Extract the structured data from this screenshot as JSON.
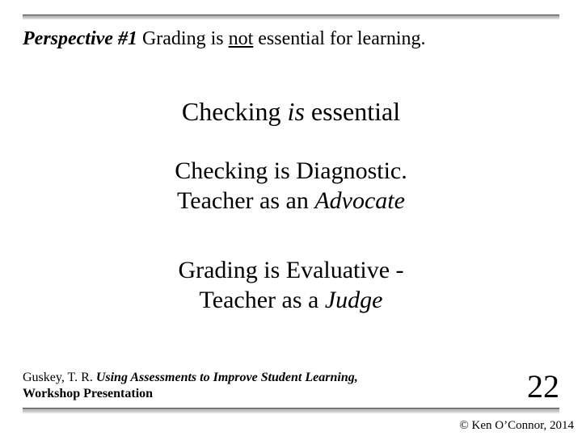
{
  "colors": {
    "background": "#ffffff",
    "text": "#000000",
    "rule_dark": "#4a4a4a",
    "rule_gradient_top": "#9e9e9e",
    "rule_gradient_bottom": "#e6e6e6"
  },
  "typography": {
    "font_family": "Times New Roman",
    "title_fontsize": 24,
    "body_fontsize_main": 32,
    "body_fontsize_sub": 30,
    "citation_fontsize": 16,
    "page_number_fontsize": 40,
    "copyright_fontsize": 15
  },
  "title": {
    "prefix": "Perspective #1",
    "before_underline": " Grading is ",
    "underlined": "not",
    "after_underline": " essential for learning."
  },
  "body": {
    "line1_a": "Checking ",
    "line1_is": "is",
    "line1_b": " essential",
    "line2": "Checking is Diagnostic.",
    "line3_a": "Teacher as an ",
    "line3_i": "Advocate",
    "line4": "Grading is Evaluative -",
    "line5_a": "Teacher as a ",
    "line5_i": "Judge"
  },
  "citation": {
    "author": "Guskey, T. R.  ",
    "title": "Using Assessments to Improve Student Learning,",
    "rest": "Workshop Presentation"
  },
  "page_number": "22",
  "copyright": "© Ken O’Connor, 2014"
}
